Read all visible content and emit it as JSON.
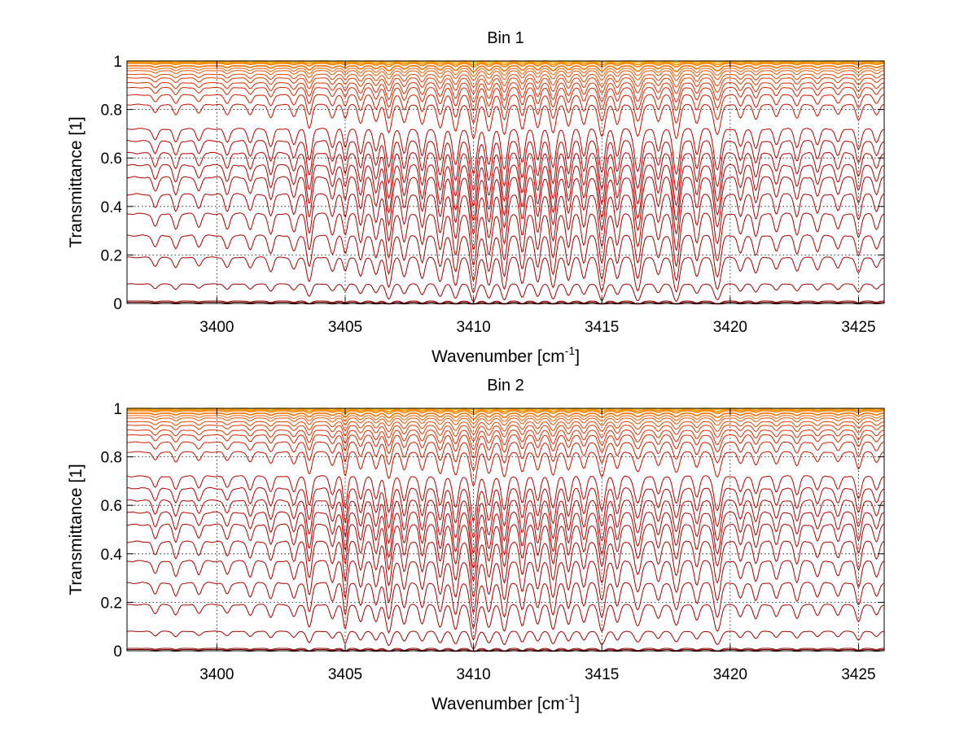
{
  "chart_data": [
    {
      "type": "line",
      "title": "Bin 1",
      "xlabel": "Wavenumber [cm",
      "xlabel_sup": "-1",
      "xlabel_end": "]",
      "ylabel": "Transmittance [1]",
      "xlim": [
        3396.5,
        3426
      ],
      "ylim": [
        0,
        1
      ],
      "grid": true,
      "xticks": [
        3400,
        3405,
        3410,
        3415,
        3420,
        3425
      ],
      "yticks": [
        0,
        0.2,
        0.4,
        0.6,
        0.8,
        1
      ],
      "xtick_labels": [
        "3400",
        "3405",
        "3410",
        "3415",
        "3420",
        "3425"
      ],
      "ytick_labels": [
        "0",
        "0.2",
        "0.4",
        "0.6",
        "0.8",
        "1"
      ],
      "series_baselines": [
        0.0,
        0.005,
        0.01,
        0.08,
        0.19,
        0.28,
        0.37,
        0.45,
        0.52,
        0.57,
        0.62,
        0.67,
        0.72,
        0.82,
        0.86,
        0.89,
        0.91,
        0.93,
        0.945,
        0.96,
        0.97,
        0.98,
        0.99,
        0.995,
        1.0
      ],
      "series_colors": [
        "#5a0000",
        "#7a0000",
        "#8b0000",
        "#990000",
        "#a00000",
        "#a30000",
        "#a60000",
        "#a80000",
        "#aa0000",
        "#ac0000",
        "#ae0000",
        "#b00000",
        "#b20000",
        "#c41000",
        "#cc1a00",
        "#d42200",
        "#da2c00",
        "#e03600",
        "#e64200",
        "#ea5000",
        "#ee6000",
        "#f27000",
        "#f68000",
        "#f99500",
        "#fcb000"
      ],
      "absorption_lines": [
        {
          "x": 3397.6,
          "depth": 0.25,
          "width": 0.1
        },
        {
          "x": 3398.4,
          "depth": 0.3,
          "width": 0.1
        },
        {
          "x": 3399.3,
          "depth": 0.25,
          "width": 0.1
        },
        {
          "x": 3400.4,
          "depth": 0.3,
          "width": 0.1
        },
        {
          "x": 3401.3,
          "depth": 0.3,
          "width": 0.1
        },
        {
          "x": 3402.1,
          "depth": 0.4,
          "width": 0.1
        },
        {
          "x": 3403.0,
          "depth": 0.35,
          "width": 0.1
        },
        {
          "x": 3403.6,
          "depth": 0.7,
          "width": 0.1
        },
        {
          "x": 3404.5,
          "depth": 0.4,
          "width": 0.1
        },
        {
          "x": 3405.0,
          "depth": 0.4,
          "width": 0.08
        },
        {
          "x": 3405.6,
          "depth": 0.55,
          "width": 0.1
        },
        {
          "x": 3406.2,
          "depth": 0.5,
          "width": 0.1
        },
        {
          "x": 3406.7,
          "depth": 0.85,
          "width": 0.11
        },
        {
          "x": 3407.3,
          "depth": 0.55,
          "width": 0.1
        },
        {
          "x": 3408.0,
          "depth": 0.6,
          "width": 0.1
        },
        {
          "x": 3408.7,
          "depth": 0.7,
          "width": 0.11
        },
        {
          "x": 3409.3,
          "depth": 0.8,
          "width": 0.11
        },
        {
          "x": 3410.0,
          "depth": 1.0,
          "width": 0.12
        },
        {
          "x": 3410.6,
          "depth": 0.8,
          "width": 0.11
        },
        {
          "x": 3411.2,
          "depth": 0.9,
          "width": 0.11
        },
        {
          "x": 3411.9,
          "depth": 0.75,
          "width": 0.1
        },
        {
          "x": 3412.5,
          "depth": 0.7,
          "width": 0.1
        },
        {
          "x": 3413.1,
          "depth": 0.85,
          "width": 0.11
        },
        {
          "x": 3413.7,
          "depth": 0.65,
          "width": 0.1
        },
        {
          "x": 3414.3,
          "depth": 0.6,
          "width": 0.1
        },
        {
          "x": 3415.0,
          "depth": 0.95,
          "width": 0.12
        },
        {
          "x": 3415.6,
          "depth": 0.6,
          "width": 0.1
        },
        {
          "x": 3416.4,
          "depth": 0.95,
          "width": 0.13
        },
        {
          "x": 3417.2,
          "depth": 0.5,
          "width": 0.1
        },
        {
          "x": 3417.9,
          "depth": 1.0,
          "width": 0.12
        },
        {
          "x": 3418.7,
          "depth": 0.55,
          "width": 0.1
        },
        {
          "x": 3419.5,
          "depth": 0.9,
          "width": 0.13
        },
        {
          "x": 3420.4,
          "depth": 0.4,
          "width": 0.1
        },
        {
          "x": 3421.0,
          "depth": 0.45,
          "width": 0.1
        },
        {
          "x": 3421.8,
          "depth": 0.35,
          "width": 0.1
        },
        {
          "x": 3422.6,
          "depth": 0.4,
          "width": 0.1
        },
        {
          "x": 3423.4,
          "depth": 0.35,
          "width": 0.1
        },
        {
          "x": 3424.2,
          "depth": 0.3,
          "width": 0.1
        },
        {
          "x": 3425.0,
          "depth": 0.45,
          "width": 0.1
        },
        {
          "x": 3425.7,
          "depth": 0.3,
          "width": 0.1
        }
      ]
    },
    {
      "type": "line",
      "title": "Bin 2",
      "xlabel": "Wavenumber [cm",
      "xlabel_sup": "-1",
      "xlabel_end": "]",
      "ylabel": "Transmittance [1]",
      "xlim": [
        3396.5,
        3426
      ],
      "ylim": [
        0,
        1
      ],
      "grid": true,
      "xticks": [
        3400,
        3405,
        3410,
        3415,
        3420,
        3425
      ],
      "yticks": [
        0,
        0.2,
        0.4,
        0.6,
        0.8,
        1
      ],
      "xtick_labels": [
        "3400",
        "3405",
        "3410",
        "3415",
        "3420",
        "3425"
      ],
      "ytick_labels": [
        "0",
        "0.2",
        "0.4",
        "0.6",
        "0.8",
        "1"
      ],
      "series_baselines": [
        0.0,
        0.005,
        0.01,
        0.08,
        0.19,
        0.28,
        0.37,
        0.45,
        0.52,
        0.57,
        0.62,
        0.67,
        0.72,
        0.82,
        0.86,
        0.89,
        0.91,
        0.93,
        0.945,
        0.96,
        0.97,
        0.98,
        0.99,
        0.995,
        1.0
      ],
      "series_colors": [
        "#5a0000",
        "#7a0000",
        "#8b0000",
        "#990000",
        "#a00000",
        "#a30000",
        "#a60000",
        "#a80000",
        "#aa0000",
        "#ac0000",
        "#ae0000",
        "#b00000",
        "#b20000",
        "#c41000",
        "#cc1a00",
        "#d42200",
        "#da2c00",
        "#e03600",
        "#e64200",
        "#ea5000",
        "#ee6000",
        "#f27000",
        "#f68000",
        "#f99500",
        "#fcb000"
      ],
      "absorption_lines": [
        {
          "x": 3397.6,
          "depth": 0.25,
          "width": 0.1
        },
        {
          "x": 3398.4,
          "depth": 0.3,
          "width": 0.1
        },
        {
          "x": 3399.3,
          "depth": 0.25,
          "width": 0.1
        },
        {
          "x": 3400.4,
          "depth": 0.25,
          "width": 0.1
        },
        {
          "x": 3401.3,
          "depth": 0.3,
          "width": 0.1
        },
        {
          "x": 3402.1,
          "depth": 0.35,
          "width": 0.1
        },
        {
          "x": 3403.0,
          "depth": 0.35,
          "width": 0.1
        },
        {
          "x": 3403.6,
          "depth": 0.65,
          "width": 0.1
        },
        {
          "x": 3404.5,
          "depth": 0.4,
          "width": 0.1
        },
        {
          "x": 3405.0,
          "depth": 0.7,
          "width": 0.08
        },
        {
          "x": 3405.6,
          "depth": 0.5,
          "width": 0.1
        },
        {
          "x": 3406.2,
          "depth": 0.5,
          "width": 0.1
        },
        {
          "x": 3406.7,
          "depth": 0.8,
          "width": 0.11
        },
        {
          "x": 3407.3,
          "depth": 0.55,
          "width": 0.1
        },
        {
          "x": 3408.0,
          "depth": 0.55,
          "width": 0.1
        },
        {
          "x": 3408.7,
          "depth": 0.65,
          "width": 0.11
        },
        {
          "x": 3409.3,
          "depth": 0.7,
          "width": 0.11
        },
        {
          "x": 3410.0,
          "depth": 1.0,
          "width": 0.12
        },
        {
          "x": 3410.6,
          "depth": 0.65,
          "width": 0.11
        },
        {
          "x": 3411.2,
          "depth": 0.75,
          "width": 0.11
        },
        {
          "x": 3411.9,
          "depth": 0.6,
          "width": 0.1
        },
        {
          "x": 3412.5,
          "depth": 0.55,
          "width": 0.1
        },
        {
          "x": 3413.1,
          "depth": 0.7,
          "width": 0.11
        },
        {
          "x": 3413.7,
          "depth": 0.55,
          "width": 0.1
        },
        {
          "x": 3414.3,
          "depth": 0.5,
          "width": 0.1
        },
        {
          "x": 3415.0,
          "depth": 0.75,
          "width": 0.12
        },
        {
          "x": 3415.6,
          "depth": 0.5,
          "width": 0.1
        },
        {
          "x": 3416.4,
          "depth": 0.6,
          "width": 0.13
        },
        {
          "x": 3417.2,
          "depth": 0.4,
          "width": 0.1
        },
        {
          "x": 3417.9,
          "depth": 0.6,
          "width": 0.12
        },
        {
          "x": 3418.7,
          "depth": 0.45,
          "width": 0.1
        },
        {
          "x": 3419.5,
          "depth": 0.75,
          "width": 0.13
        },
        {
          "x": 3420.4,
          "depth": 0.35,
          "width": 0.1
        },
        {
          "x": 3421.0,
          "depth": 0.4,
          "width": 0.1
        },
        {
          "x": 3421.8,
          "depth": 0.35,
          "width": 0.1
        },
        {
          "x": 3422.6,
          "depth": 0.4,
          "width": 0.1
        },
        {
          "x": 3423.4,
          "depth": 0.3,
          "width": 0.1
        },
        {
          "x": 3424.2,
          "depth": 0.3,
          "width": 0.1
        },
        {
          "x": 3425.0,
          "depth": 0.5,
          "width": 0.1
        },
        {
          "x": 3425.7,
          "depth": 0.3,
          "width": 0.1
        }
      ]
    }
  ]
}
